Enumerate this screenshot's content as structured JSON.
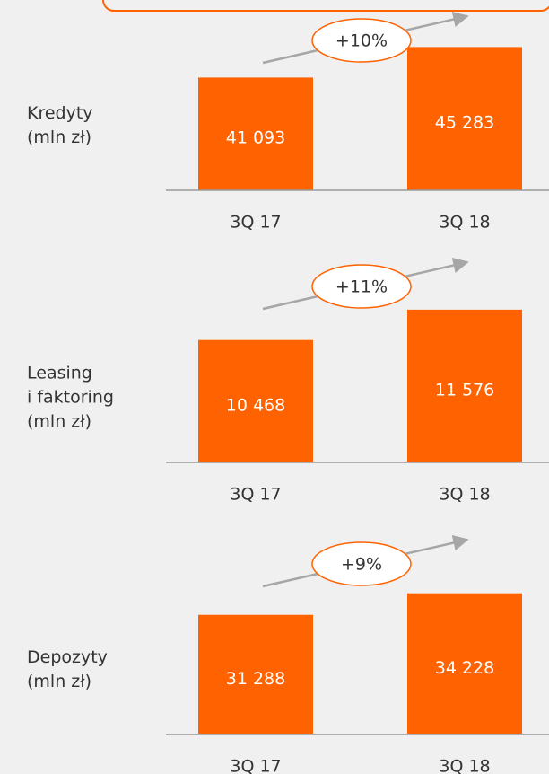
{
  "chart_data": [
    {
      "type": "bar",
      "y_label": [
        "Kredyty",
        "(mln zł)"
      ],
      "categories": [
        "3Q 17",
        "3Q 18"
      ],
      "values": [
        41093,
        45283
      ],
      "value_labels": [
        "41 093",
        "45 283"
      ],
      "color": "#ff6200",
      "ylim": [
        25600,
        47800
      ],
      "annotation": "+10%"
    },
    {
      "type": "bar",
      "y_label": [
        "Leasing",
        "i faktoring",
        "(mln zł)"
      ],
      "categories": [
        "3Q 17",
        "3Q 18"
      ],
      "values": [
        10468,
        11576
      ],
      "value_labels": [
        "10 468",
        "11 576"
      ],
      "color": "#ff6200",
      "ylim": [
        6000,
        11900
      ],
      "annotation": "+11%"
    },
    {
      "type": "bar",
      "y_label": [
        "Depozyty",
        "(mln zł)"
      ],
      "categories": [
        "3Q 17",
        "3Q 18"
      ],
      "values": [
        31288,
        34228
      ],
      "value_labels": [
        "31 288",
        "34 228"
      ],
      "color": "#ff6200",
      "ylim": [
        15000,
        37000
      ],
      "annotation": "+9%"
    }
  ]
}
